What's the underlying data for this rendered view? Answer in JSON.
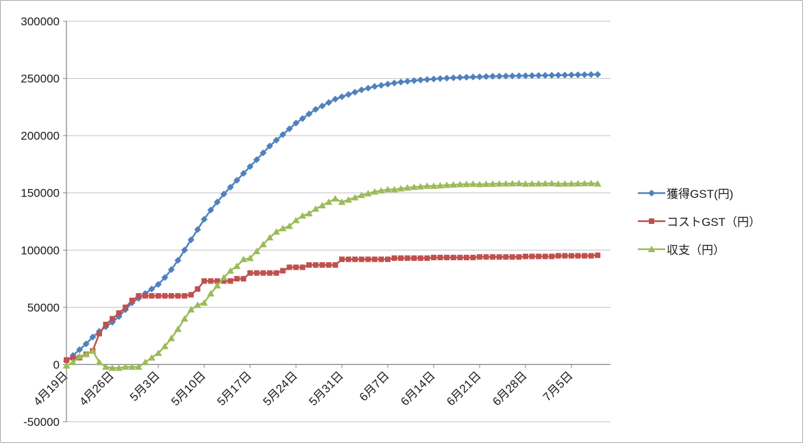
{
  "chart_data": {
    "type": "line",
    "title": "",
    "x_unit": "day",
    "n_points": 82,
    "x_tick_labels": [
      "4月19日",
      "4月26日",
      "5月3日",
      "5月10日",
      "5月17日",
      "5月24日",
      "5月31日",
      "6月7日",
      "6月14日",
      "6月21日",
      "6月28日",
      "7月5日"
    ],
    "x_tick_positions": [
      0,
      7,
      14,
      21,
      28,
      35,
      42,
      49,
      56,
      63,
      70,
      77
    ],
    "ylim": [
      -50000,
      300000
    ],
    "y_ticks": [
      -50000,
      0,
      50000,
      100000,
      150000,
      200000,
      250000,
      300000
    ],
    "y_tick_labels": [
      "-50000",
      "0",
      "50000",
      "100000",
      "150000",
      "200000",
      "250000",
      "300000"
    ],
    "grid": true,
    "legend_position": "right",
    "colors": {
      "grid": "#bfbfbf",
      "axis": "#808080",
      "text": "#1a1a1a",
      "background": "#ffffff",
      "border": "#a6a6a6"
    },
    "series": [
      {
        "name": "獲得GST(円)",
        "color": "#4f81bd",
        "marker": "diamond",
        "values": [
          3000,
          8000,
          13000,
          18000,
          24000,
          29000,
          33000,
          37000,
          42000,
          48000,
          54000,
          58000,
          62000,
          66000,
          70000,
          76000,
          83000,
          91000,
          100000,
          109000,
          118000,
          127000,
          135000,
          142000,
          149000,
          155000,
          161000,
          167000,
          173000,
          179000,
          185000,
          191000,
          196000,
          201000,
          206000,
          211000,
          215000,
          219000,
          223000,
          226000,
          229000,
          232000,
          234000,
          236000,
          238000,
          240000,
          241500,
          243000,
          244000,
          245000,
          246000,
          246800,
          247500,
          248100,
          248600,
          249100,
          249500,
          249900,
          250300,
          250600,
          250900,
          251100,
          251300,
          251500,
          251700,
          251900,
          252000,
          252100,
          252200,
          252300,
          252400,
          252500,
          252600,
          252700,
          252800,
          252900,
          253000,
          253100,
          253200,
          253300,
          253400,
          253500
        ]
      },
      {
        "name": "コストGST（円）",
        "color": "#c0504d",
        "marker": "square",
        "values": [
          4000,
          6000,
          6000,
          9000,
          12000,
          27000,
          35000,
          40000,
          45000,
          50000,
          56000,
          60000,
          60000,
          60000,
          60000,
          60000,
          60000,
          60000,
          60000,
          61000,
          66000,
          73000,
          73000,
          73000,
          73000,
          73000,
          75000,
          75000,
          80000,
          80000,
          80000,
          80000,
          80000,
          82000,
          85000,
          85000,
          85000,
          87000,
          87000,
          87000,
          87000,
          87000,
          92000,
          92000,
          92000,
          92000,
          92000,
          92000,
          92000,
          92000,
          93000,
          93000,
          93000,
          93000,
          93000,
          93000,
          93500,
          93500,
          93500,
          93500,
          93500,
          93500,
          93500,
          94000,
          94000,
          94000,
          94000,
          94000,
          94000,
          94000,
          94500,
          94500,
          94500,
          94500,
          94500,
          95000,
          95000,
          95000,
          95000,
          95000,
          95000,
          95500
        ]
      },
      {
        "name": "収支（円）",
        "color": "#9bbb59",
        "marker": "triangle",
        "values": [
          -1000,
          2000,
          7000,
          9000,
          12000,
          2000,
          -2000,
          -3000,
          -3000,
          -2000,
          -2000,
          -2000,
          2000,
          6000,
          10000,
          16000,
          23000,
          31000,
          40000,
          48000,
          52000,
          54000,
          62000,
          69000,
          76000,
          82000,
          86000,
          92000,
          93000,
          99000,
          105000,
          111000,
          116000,
          119000,
          121000,
          126000,
          130000,
          132000,
          136000,
          139000,
          142000,
          145000,
          142000,
          144000,
          146000,
          148000,
          149500,
          151000,
          152000,
          153000,
          153000,
          153800,
          154500,
          155100,
          155600,
          156100,
          156000,
          156400,
          156800,
          157100,
          157400,
          157600,
          157800,
          157500,
          157700,
          157900,
          158000,
          158100,
          158200,
          158300,
          157900,
          158000,
          158100,
          158200,
          158300,
          157900,
          158000,
          158100,
          158200,
          158300,
          158400,
          158000
        ]
      }
    ]
  }
}
